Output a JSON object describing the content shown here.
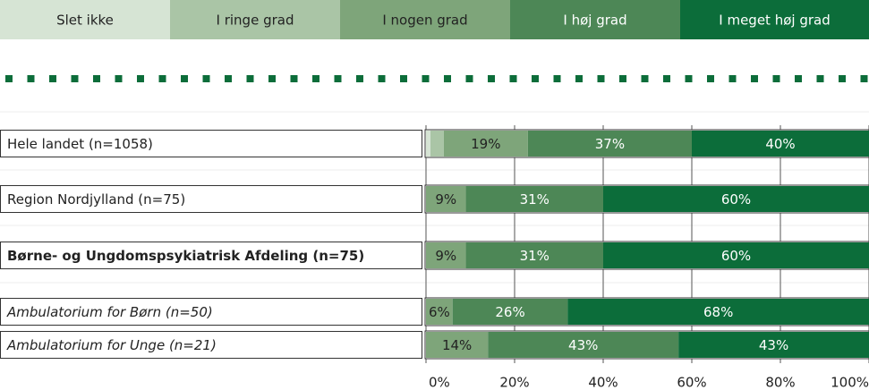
{
  "chart_data": {
    "type": "stacked-hbar",
    "categories": [
      "Hele landet (n=1058)",
      "Region Nordjylland (n=75)",
      "Børne- og Ungdomspsykiatrisk Afdeling (n=75)",
      "Ambulatorium for Børn (n=50)",
      "Ambulatorium for Unge (n=21)"
    ],
    "category_styles": [
      "normal",
      "normal",
      "bold",
      "italic",
      "italic"
    ],
    "series": [
      {
        "name": "Slet ikke",
        "color": "#d6e4d4",
        "label_color": "#222222",
        "values": [
          1,
          0,
          0,
          0,
          0
        ],
        "value_labels": [
          null,
          null,
          null,
          null,
          null
        ]
      },
      {
        "name": "I ringe grad",
        "color": "#aac5a6",
        "label_color": "#222222",
        "values": [
          3,
          0,
          0,
          0,
          0
        ],
        "value_labels": [
          null,
          null,
          null,
          null,
          null
        ]
      },
      {
        "name": "I nogen grad",
        "color": "#7ea57a",
        "label_color": "#222222",
        "values": [
          19,
          9,
          9,
          6,
          14
        ],
        "value_labels": [
          "19%",
          "9%",
          "9%",
          "6%",
          "14%"
        ]
      },
      {
        "name": "I høj grad",
        "color": "#4d8756",
        "label_color": "#ffffff",
        "values": [
          37,
          31,
          31,
          26,
          43
        ],
        "value_labels": [
          "37%",
          "31%",
          "31%",
          "26%",
          "43%"
        ]
      },
      {
        "name": "I meget høj grad",
        "color": "#0c6d3a",
        "label_color": "#ffffff",
        "values": [
          40,
          60,
          60,
          68,
          43
        ],
        "value_labels": [
          "40%",
          "60%",
          "60%",
          "68%",
          "43%"
        ]
      }
    ],
    "xlim": [
      0,
      100
    ],
    "xticks": [
      {
        "value": 0,
        "label": "0%"
      },
      {
        "value": 20,
        "label": "20%"
      },
      {
        "value": 40,
        "label": "40%"
      },
      {
        "value": 60,
        "label": "60%"
      },
      {
        "value": 80,
        "label": "80%"
      },
      {
        "value": 100,
        "label": "100%"
      }
    ]
  }
}
